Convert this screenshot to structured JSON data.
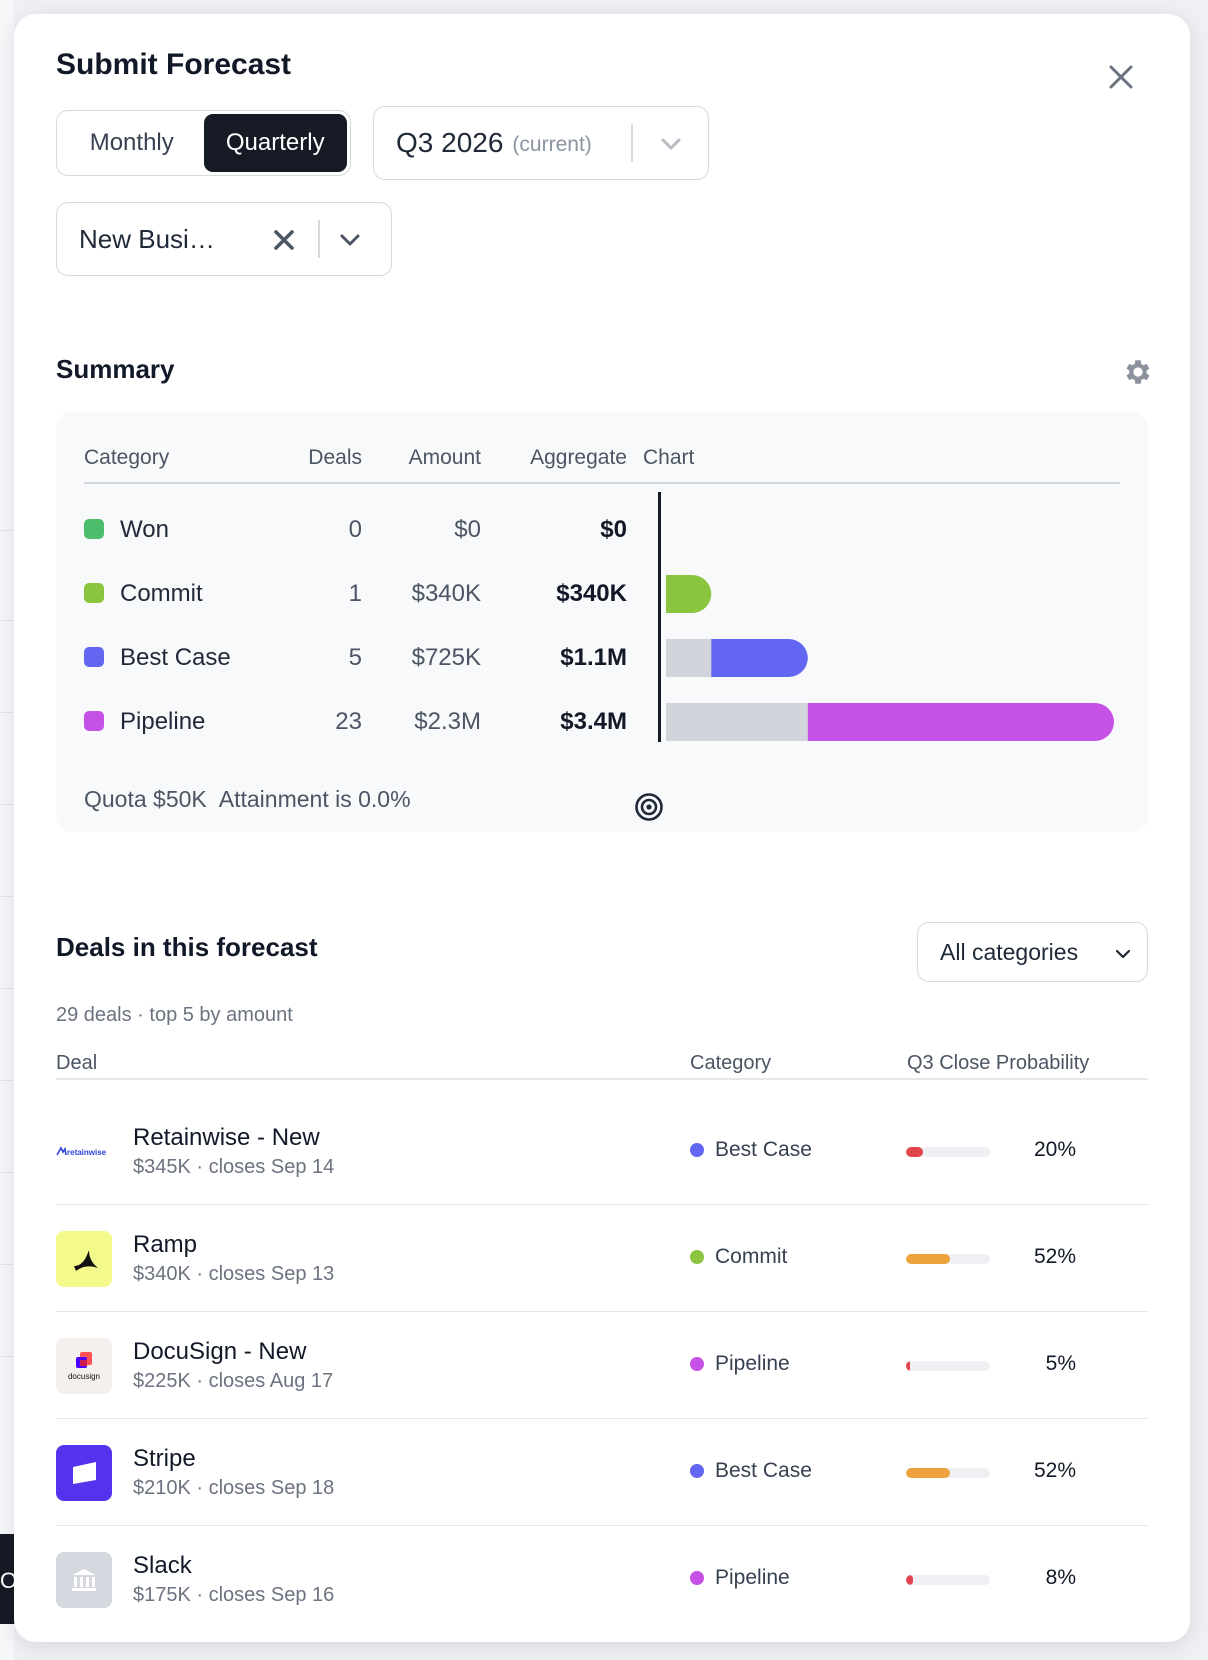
{
  "dialog": {
    "title": "Submit Forecast"
  },
  "period_toggle": {
    "options": [
      "Monthly",
      "Quarterly"
    ],
    "selected": "Quarterly"
  },
  "period_select": {
    "value": "Q3 2026",
    "note": "(current)"
  },
  "segment_select": {
    "value": "New Busi…"
  },
  "summary": {
    "title": "Summary",
    "columns": {
      "category": "Category",
      "deals": "Deals",
      "amount": "Amount",
      "aggregate": "Aggregate",
      "chart": "Chart"
    },
    "rows": [
      {
        "category": "Won",
        "deals": "0",
        "amount": "$0",
        "aggregate": "$0",
        "color": "#4cbd6b"
      },
      {
        "category": "Commit",
        "deals": "1",
        "amount": "$340K",
        "aggregate": "$340K",
        "color": "#8bc540"
      },
      {
        "category": "Best Case",
        "deals": "5",
        "amount": "$725K",
        "aggregate": "$1.1M",
        "color": "#6366f1"
      },
      {
        "category": "Pipeline",
        "deals": "23",
        "amount": "$2.3M",
        "aggregate": "$3.4M",
        "color": "#c651e6"
      }
    ],
    "quota_label": "Quota $50K",
    "attainment_label": "Attainment is 0.0%"
  },
  "chart_data": {
    "type": "bar",
    "orientation": "horizontal-stacked",
    "categories": [
      "Won",
      "Commit",
      "Best Case",
      "Pipeline"
    ],
    "series": [
      {
        "values": [
          0,
          0,
          340,
          1065
        ]
      },
      {
        "values": [
          0,
          340,
          725,
          2300
        ]
      }
    ],
    "units": "$K",
    "xlim": [
      0,
      3365
    ],
    "quota_marker": 50,
    "grid": false
  },
  "deals": {
    "title": "Deals in this forecast",
    "subtitle": "29 deals · top 5 by amount",
    "filter_label": "All categories",
    "columns": {
      "deal": "Deal",
      "category": "Category",
      "probability": "Q3 Close Probability"
    },
    "rows": [
      {
        "name": "Retainwise - New",
        "meta": "$345K · closes Sep 14",
        "category": "Best Case",
        "cat_color": "#6366f1",
        "probability": "20%",
        "prob_value": 0.2,
        "prob_color": "#e0464b",
        "logo": "retainwise-logo",
        "logo_text": "retainwise"
      },
      {
        "name": "Ramp",
        "meta": "$340K · closes Sep 13",
        "category": "Commit",
        "cat_color": "#8bc540",
        "probability": "52%",
        "prob_value": 0.52,
        "prob_color": "#eda23e",
        "logo": "ramp-logo"
      },
      {
        "name": "DocuSign - New",
        "meta": "$225K · closes Aug 17",
        "category": "Pipeline",
        "cat_color": "#c651e6",
        "probability": "5%",
        "prob_value": 0.05,
        "prob_color": "#e0464b",
        "logo": "docusign-logo",
        "logo_text": "docusign"
      },
      {
        "name": "Stripe",
        "meta": "$210K · closes Sep 18",
        "category": "Best Case",
        "cat_color": "#6366f1",
        "probability": "52%",
        "prob_value": 0.52,
        "prob_color": "#eda23e",
        "logo": "stripe-logo"
      },
      {
        "name": "Slack",
        "meta": "$175K · closes Sep 16",
        "category": "Pipeline",
        "cat_color": "#c651e6",
        "probability": "8%",
        "prob_value": 0.08,
        "prob_color": "#e0464b",
        "logo": "bank-icon"
      }
    ]
  },
  "background": {
    "button_fragment": "O"
  },
  "colors": {
    "accent": "#151a24",
    "pipeline_base": "#d1d5db"
  }
}
